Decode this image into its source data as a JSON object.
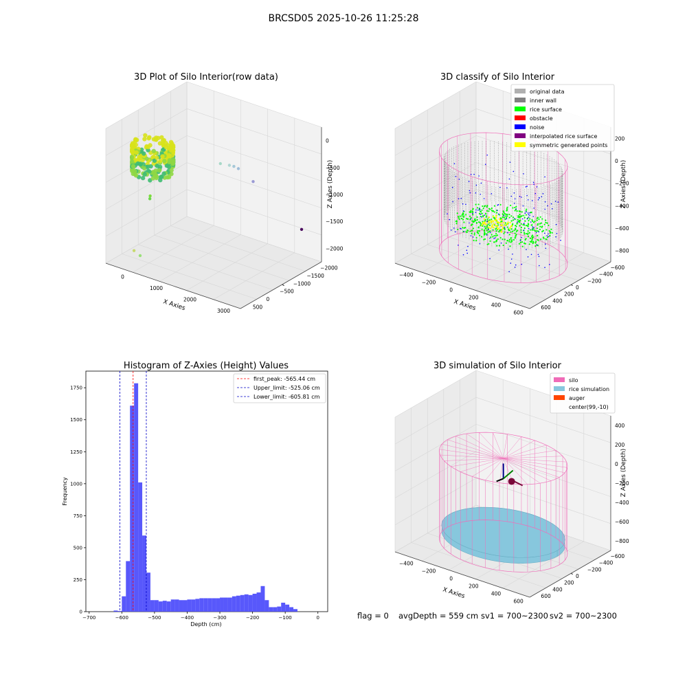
{
  "figure_title": "BRCSD05 2025-10-26 11:25:28",
  "colors": {
    "pane_wall": "#f2f2f2",
    "pane_floor": "#e9e9e9",
    "grid": "#d6d6d6",
    "axis": "#444444",
    "hist_bar": "#4f4ffb",
    "red_line": "#ff0000",
    "blue_line": "#0000c8",
    "legend_border": "#cccccc",
    "silo_pink": "#f06cb8",
    "rice_blue": "#87c7dd",
    "auger": "#ff4500",
    "rice_green": "#00ff00",
    "noise_blue": "#0000ff",
    "wall_gray": "#808080",
    "orig_gray": "#b0b0b0",
    "obstacle_red": "#ff0000",
    "interp_purple": "#800080",
    "sym_yellow": "#ffff00"
  },
  "chart_data": [
    {
      "type": "scatter",
      "title": "3D Plot of Silo Interior(row data)",
      "xlabel": "X Axies",
      "ylabel": "Y Axies",
      "zlabel": "Z Axies (Depth)",
      "x_ticks": [
        "0",
        "1000",
        "2000",
        "3000"
      ],
      "y_ticks": [
        "500",
        "0",
        "−500",
        "−1000",
        "−1500",
        "−2000"
      ],
      "z_ticks": [
        "0",
        "−500",
        "−1000",
        "−1500",
        "−2000"
      ],
      "xlim": [
        -500,
        3700
      ],
      "ylim": [
        -2100,
        700
      ],
      "zlim": [
        -2300,
        100
      ],
      "points": [
        {
          "x": 200,
          "y": 500,
          "z": -2000,
          "color": "#c7d96e"
        },
        {
          "x": 300,
          "y": 400,
          "z": -2100,
          "color": "#9be07a"
        },
        {
          "x": 1900,
          "y": -600,
          "z": -450,
          "color": "#a8d8c8"
        },
        {
          "x": 2000,
          "y": -800,
          "z": -520,
          "color": "#b0d6d2"
        },
        {
          "x": 2050,
          "y": -900,
          "z": -560,
          "color": "#a6c8d8"
        },
        {
          "x": 2100,
          "y": -1000,
          "z": -620,
          "color": "#9fbdd8"
        },
        {
          "x": 2200,
          "y": -1400,
          "z": -950,
          "color": "#9a9ad4"
        },
        {
          "x": 3350,
          "y": -1800,
          "z": -1700,
          "color": "#4b0a5e"
        },
        {
          "x": -200,
          "y": -500,
          "z": -1400,
          "color": "#7cdc3c"
        },
        {
          "x": -300,
          "y": -600,
          "z": -1500,
          "color": "#6bd64a"
        }
      ]
    },
    {
      "type": "scatter",
      "title": "3D classify of Silo Interior",
      "xlabel": "X Axies",
      "ylabel": "Y Axies",
      "zlabel": "Z Axies (Depth)",
      "x_ticks": [
        "−400",
        "−200",
        "0",
        "200",
        "400",
        "600"
      ],
      "y_ticks": [
        "600",
        "400",
        "200",
        "0",
        "−200",
        "−400",
        "−600"
      ],
      "z_ticks": [
        "200",
        "0",
        "−200",
        "−400",
        "−600",
        "−800"
      ],
      "xlim": [
        -550,
        750
      ],
      "ylim": [
        -700,
        700
      ],
      "zlim": [
        -900,
        350
      ],
      "legend": {
        "position": "upper right",
        "entries": [
          "original data",
          "inner wall",
          "rice surface",
          "obstacle",
          "noise",
          "interpolated rice surface",
          "symmetric generated points"
        ]
      },
      "silo": {
        "center_x": 99,
        "center_y": -10,
        "radius": 540,
        "z_top": 60,
        "z_bottom": -850
      },
      "rice_surface_depth": -565
    },
    {
      "type": "bar",
      "title": "Histogram of Z-Axies (Height) Values",
      "xlabel": "Depth (cm)",
      "ylabel": "Frequency",
      "xlim": [
        -710,
        30
      ],
      "ylim": [
        0,
        1880
      ],
      "x_ticks": [
        "−700",
        "−600",
        "−500",
        "−400",
        "−300",
        "−200",
        "−100",
        "0"
      ],
      "y_ticks": [
        "0",
        "250",
        "500",
        "750",
        "1000",
        "1250",
        "1500",
        "1750"
      ],
      "bin_start": -612.5,
      "bin_width": 12.5,
      "bin_counts": [
        5,
        120,
        395,
        1610,
        1785,
        1010,
        595,
        305,
        90,
        90,
        80,
        85,
        80,
        95,
        95,
        90,
        90,
        95,
        95,
        100,
        105,
        105,
        105,
        105,
        105,
        110,
        110,
        110,
        120,
        125,
        130,
        135,
        130,
        140,
        150,
        200,
        90,
        35,
        35,
        40,
        70,
        55,
        35,
        20
      ],
      "extra_bins": [
        {
          "x": -625,
          "count": 3
        }
      ],
      "lines": [
        {
          "label": "first_peak: -565.44 cm",
          "x": -565.44,
          "color": "#ff0000"
        },
        {
          "label": "Upper_limit: -525.06 cm",
          "x": -525.06,
          "color": "#0000c8"
        },
        {
          "label": "Lower_limit: -605.81 cm",
          "x": -605.81,
          "color": "#0000c8"
        }
      ]
    },
    {
      "type": "scatter",
      "title": "3D simulation of Silo Interior",
      "xlabel": "X Axies",
      "ylabel": "Y Axies",
      "zlabel": "Z Axies (Depth)",
      "x_ticks": [
        "−400",
        "−200",
        "0",
        "200",
        "400",
        "600"
      ],
      "y_ticks": [
        "600",
        "400",
        "200",
        "0",
        "−200",
        "−400",
        "−600"
      ],
      "z_ticks": [
        "400",
        "200",
        "0",
        "−200",
        "−400",
        "−600",
        "−800"
      ],
      "xlim": [
        -550,
        750
      ],
      "ylim": [
        -700,
        700
      ],
      "zlim": [
        -900,
        500
      ],
      "legend": {
        "position": "upper right",
        "entries": [
          "silo",
          "rice simulation",
          "auger",
          "center(99,-10)"
        ]
      },
      "silo": {
        "center_x": 99,
        "center_y": -10,
        "radius": 540,
        "z_top": 60,
        "z_bottom": -850
      },
      "rice_surface_depth": -559
    }
  ],
  "footer": {
    "flag": "flag = 0",
    "avg_depth": "avgDepth = 559 cm",
    "sv1": "sv1 = 700~2300",
    "sv2": "sv2 = 700~2300"
  }
}
